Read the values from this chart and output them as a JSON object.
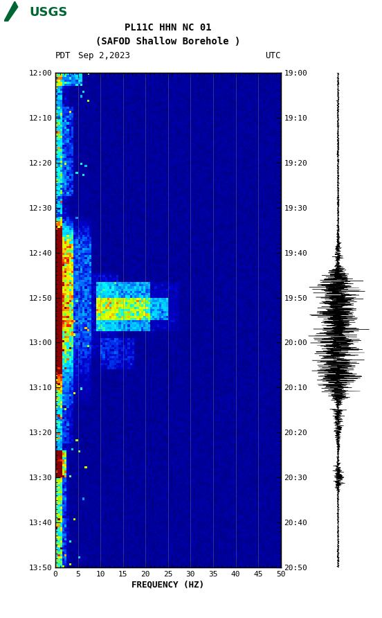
{
  "title_line1": "PL11C HHN NC 01",
  "title_line2": "(SAFOD Shallow Borehole )",
  "date_label": "Sep 2,2023",
  "left_tz": "PDT",
  "right_tz": "UTC",
  "left_times": [
    "12:00",
    "12:10",
    "12:20",
    "12:30",
    "12:40",
    "12:50",
    "13:00",
    "13:10",
    "13:20",
    "13:30",
    "13:40",
    "13:50"
  ],
  "right_times": [
    "19:00",
    "19:10",
    "19:20",
    "19:30",
    "19:40",
    "19:50",
    "20:00",
    "20:10",
    "20:20",
    "20:30",
    "20:40",
    "20:50"
  ],
  "freq_min": 0,
  "freq_max": 50,
  "freq_ticks": [
    0,
    5,
    10,
    15,
    20,
    25,
    30,
    35,
    40,
    45,
    50
  ],
  "freq_label": "FREQUENCY (HZ)",
  "background_color": "#ffffff",
  "grid_color": "#808080",
  "usgs_green": "#006633",
  "cmap_colors": [
    [
      0.0,
      "#00008B"
    ],
    [
      0.12,
      "#0000CD"
    ],
    [
      0.25,
      "#0055FF"
    ],
    [
      0.38,
      "#00CCFF"
    ],
    [
      0.5,
      "#00FFFF"
    ],
    [
      0.6,
      "#AAFF00"
    ],
    [
      0.7,
      "#FFFF00"
    ],
    [
      0.8,
      "#FF8800"
    ],
    [
      0.9,
      "#FF2200"
    ],
    [
      1.0,
      "#880000"
    ]
  ]
}
